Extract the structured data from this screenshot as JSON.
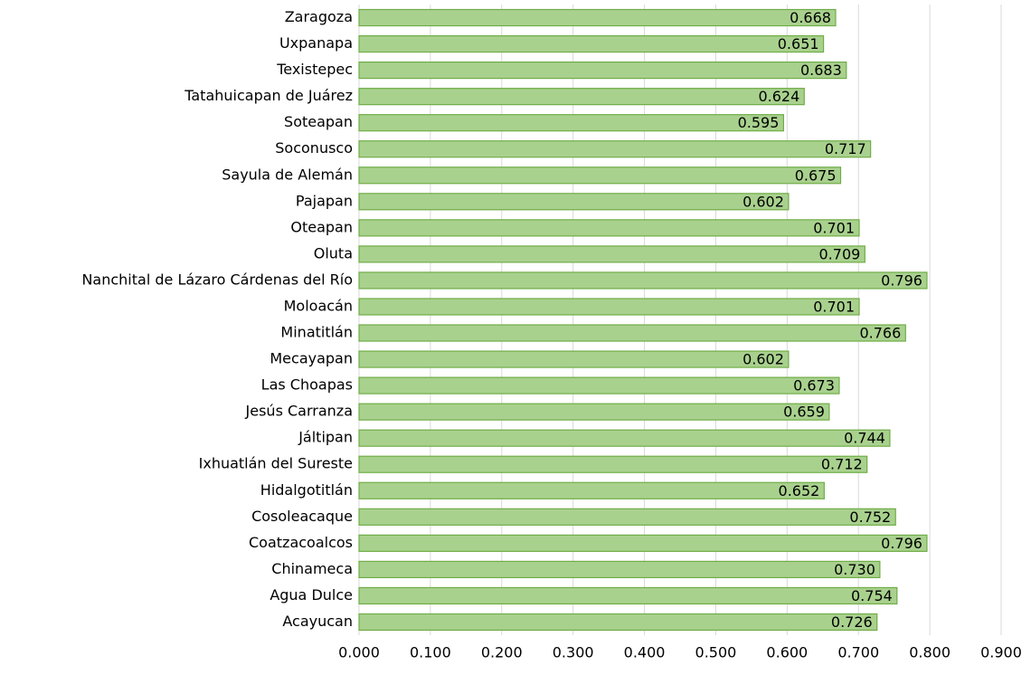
{
  "chart_data": {
    "type": "barh",
    "categories": [
      "Zaragoza",
      "Uxpanapa",
      "Texistepec",
      "Tatahuicapan de Juárez",
      "Soteapan",
      "Soconusco",
      "Sayula de Alemán",
      "Pajapan",
      "Oteapan",
      "Oluta",
      "Nanchital de Lázaro Cárdenas del Río",
      "Moloacán",
      "Minatitlán",
      "Mecayapan",
      "Las Choapas",
      "Jesús Carranza",
      "Jáltipan",
      "Ixhuatlán del Sureste",
      "Hidalgotitlán",
      "Cosoleacaque",
      "Coatzacoalcos",
      "Chinameca",
      "Agua Dulce",
      "Acayucan"
    ],
    "values": [
      0.668,
      0.651,
      0.683,
      0.624,
      0.595,
      0.717,
      0.675,
      0.602,
      0.701,
      0.709,
      0.796,
      0.701,
      0.766,
      0.602,
      0.673,
      0.659,
      0.744,
      0.712,
      0.652,
      0.752,
      0.796,
      0.73,
      0.754,
      0.726
    ],
    "value_labels": [
      "0.668",
      "0.651",
      "0.683",
      "0.624",
      "0.595",
      "0.717",
      "0.675",
      "0.602",
      "0.701",
      "0.709",
      "0.796",
      "0.701",
      "0.766",
      "0.602",
      "0.673",
      "0.659",
      "0.744",
      "0.712",
      "0.652",
      "0.752",
      "0.796",
      "0.730",
      "0.754",
      "0.726"
    ],
    "color": "#a9d18e",
    "edge_color": "#70ad47",
    "xlim": [
      0,
      0.9
    ],
    "xticks": [
      {
        "value": 0,
        "label": "0.000"
      },
      {
        "value": 0.1,
        "label": "0.100"
      },
      {
        "value": 0.2,
        "label": "0.200"
      },
      {
        "value": 0.3,
        "label": "0.300"
      },
      {
        "value": 0.4,
        "label": "0.400"
      },
      {
        "value": 0.5,
        "label": "0.500"
      },
      {
        "value": 0.6,
        "label": "0.600"
      },
      {
        "value": 0.7,
        "label": "0.700"
      },
      {
        "value": 0.8,
        "label": "0.800"
      },
      {
        "value": 0.9,
        "label": "0.900"
      }
    ],
    "grid": true
  }
}
